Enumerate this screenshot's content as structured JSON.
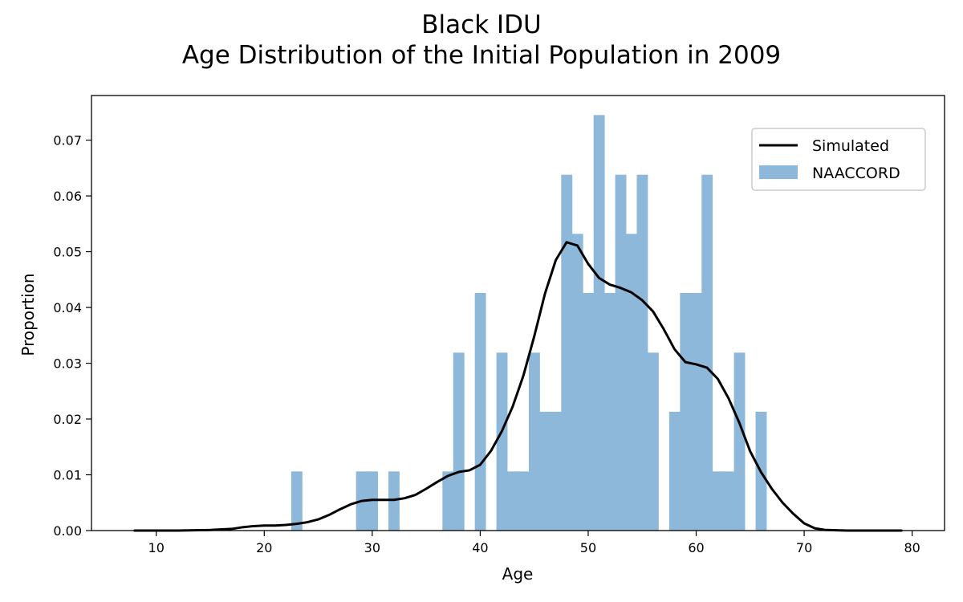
{
  "chart_data": {
    "type": "bar",
    "title": "Black IDU",
    "subtitle": "Age Distribution of the Initial Population in 2009",
    "xlabel": "Age",
    "ylabel": "Proportion",
    "xlim": [
      4,
      83
    ],
    "ylim": [
      0,
      0.078
    ],
    "xticks": [
      10,
      20,
      30,
      40,
      50,
      60,
      70,
      80
    ],
    "yticks": [
      0.0,
      0.01,
      0.02,
      0.03,
      0.04,
      0.05,
      0.06,
      0.07
    ],
    "grid": false,
    "legend_position": "top-right",
    "colors": {
      "bars": "#8db8d9",
      "line": "#000000",
      "frame": "#000000"
    },
    "series": [
      {
        "name": "NAACCORD",
        "kind": "histogram",
        "bin_width": 1,
        "bins": [
          {
            "x": 23,
            "value": 0.0106
          },
          {
            "x": 29,
            "value": 0.0106
          },
          {
            "x": 30,
            "value": 0.0106
          },
          {
            "x": 32,
            "value": 0.0106
          },
          {
            "x": 37,
            "value": 0.0106
          },
          {
            "x": 38,
            "value": 0.0319
          },
          {
            "x": 40,
            "value": 0.0426
          },
          {
            "x": 42,
            "value": 0.0319
          },
          {
            "x": 43,
            "value": 0.0106
          },
          {
            "x": 44,
            "value": 0.0106
          },
          {
            "x": 45,
            "value": 0.0319
          },
          {
            "x": 46,
            "value": 0.0213
          },
          {
            "x": 47,
            "value": 0.0213
          },
          {
            "x": 48,
            "value": 0.0638
          },
          {
            "x": 49,
            "value": 0.0532
          },
          {
            "x": 50,
            "value": 0.0426
          },
          {
            "x": 51,
            "value": 0.0745
          },
          {
            "x": 52,
            "value": 0.0426
          },
          {
            "x": 53,
            "value": 0.0638
          },
          {
            "x": 54,
            "value": 0.0532
          },
          {
            "x": 55,
            "value": 0.0638
          },
          {
            "x": 56,
            "value": 0.0319
          },
          {
            "x": 58,
            "value": 0.0213
          },
          {
            "x": 59,
            "value": 0.0426
          },
          {
            "x": 60,
            "value": 0.0426
          },
          {
            "x": 61,
            "value": 0.0638
          },
          {
            "x": 62,
            "value": 0.0106
          },
          {
            "x": 63,
            "value": 0.0106
          },
          {
            "x": 64,
            "value": 0.0319
          },
          {
            "x": 66,
            "value": 0.0213
          }
        ]
      },
      {
        "name": "Simulated",
        "kind": "line",
        "points": [
          [
            8,
            0.0
          ],
          [
            12,
            0.0
          ],
          [
            15,
            0.0001
          ],
          [
            17,
            0.0003
          ],
          [
            18,
            0.0006
          ],
          [
            19,
            0.0008
          ],
          [
            20,
            0.0009
          ],
          [
            21,
            0.0009
          ],
          [
            22,
            0.001
          ],
          [
            23,
            0.0012
          ],
          [
            24,
            0.0015
          ],
          [
            25,
            0.002
          ],
          [
            26,
            0.0028
          ],
          [
            27,
            0.0038
          ],
          [
            28,
            0.0047
          ],
          [
            29,
            0.0053
          ],
          [
            30,
            0.0055
          ],
          [
            31,
            0.0055
          ],
          [
            32,
            0.0055
          ],
          [
            33,
            0.0058
          ],
          [
            34,
            0.0064
          ],
          [
            35,
            0.0075
          ],
          [
            36,
            0.0087
          ],
          [
            37,
            0.0098
          ],
          [
            38,
            0.0105
          ],
          [
            39,
            0.0108
          ],
          [
            40,
            0.0118
          ],
          [
            41,
            0.0143
          ],
          [
            42,
            0.0178
          ],
          [
            43,
            0.0222
          ],
          [
            44,
            0.0278
          ],
          [
            45,
            0.0348
          ],
          [
            46,
            0.0425
          ],
          [
            47,
            0.0485
          ],
          [
            48,
            0.0517
          ],
          [
            49,
            0.0511
          ],
          [
            50,
            0.0478
          ],
          [
            51,
            0.0453
          ],
          [
            52,
            0.0441
          ],
          [
            53,
            0.0435
          ],
          [
            54,
            0.0427
          ],
          [
            55,
            0.0413
          ],
          [
            56,
            0.0393
          ],
          [
            57,
            0.0361
          ],
          [
            58,
            0.0325
          ],
          [
            59,
            0.0302
          ],
          [
            60,
            0.0298
          ],
          [
            61,
            0.0292
          ],
          [
            62,
            0.0272
          ],
          [
            63,
            0.0237
          ],
          [
            64,
            0.0193
          ],
          [
            65,
            0.0142
          ],
          [
            66,
            0.0105
          ],
          [
            67,
            0.0075
          ],
          [
            68,
            0.005
          ],
          [
            69,
            0.003
          ],
          [
            70,
            0.0013
          ],
          [
            71,
            0.0004
          ],
          [
            72,
            0.0001
          ],
          [
            74,
            0.0
          ],
          [
            79,
            0.0
          ]
        ]
      }
    ]
  }
}
